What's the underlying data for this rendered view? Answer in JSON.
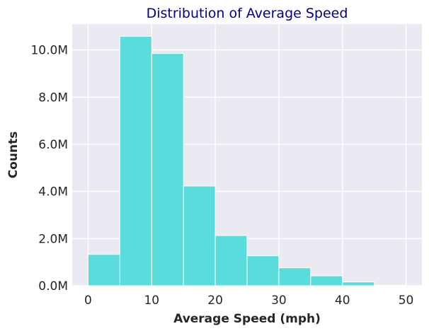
{
  "chart_data": {
    "type": "bar",
    "title": "Distribution of Average Speed",
    "xlabel": "Average Speed (mph)",
    "ylabel": "Counts",
    "bin_edges": [
      0,
      5,
      10,
      15,
      20,
      25,
      30,
      35,
      40,
      45,
      50
    ],
    "values": [
      1330000,
      10580000,
      9850000,
      4230000,
      2130000,
      1270000,
      760000,
      420000,
      160000,
      20000
    ],
    "xlim": [
      -2.5,
      52.5
    ],
    "ylim": [
      0,
      11100000
    ],
    "x_ticks": [
      0,
      10,
      20,
      30,
      40,
      50
    ],
    "x_tick_labels": [
      "0",
      "10",
      "20",
      "30",
      "40",
      "50"
    ],
    "y_ticks": [
      0,
      2000000,
      4000000,
      6000000,
      8000000,
      10000000
    ],
    "y_tick_labels": [
      "0.0M",
      "2.0M",
      "4.0M",
      "6.0M",
      "8.0M",
      "10.0M"
    ],
    "grid": true,
    "legend": "none",
    "colors": {
      "bar_fill": "#5adcdc",
      "bar_edge": "#ffffff",
      "plot_background": "#eaeaf2",
      "grid": "#ffffff",
      "title": "#00008b",
      "text": "#262626"
    }
  }
}
